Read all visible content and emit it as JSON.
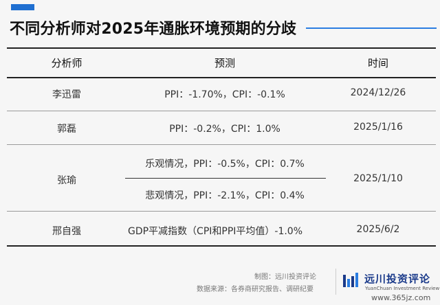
{
  "title": "不同分析师对2025年通胀环境预期的分歧",
  "colors": {
    "accent": "#1f6fd1",
    "brand": "#1a3a8a"
  },
  "table": {
    "headers": [
      "分析师",
      "预测",
      "时间"
    ],
    "rows": [
      {
        "analyst": "李迅雷",
        "forecast": "PPI：-1.70%，CPI：-0.1%",
        "time": "2024/12/26"
      },
      {
        "analyst": "郭磊",
        "forecast": "PPI：-0.2%，CPI：1.0%",
        "time": "2025/1/16"
      },
      {
        "analyst": "张瑜",
        "forecast_optimistic": "乐观情况，PPI：-0.5%，CPI：0.7%",
        "forecast_pessimistic": "悲观情况，PPI：-2.1%，CPI：0.4%",
        "time": "2025/1/10"
      },
      {
        "analyst": "邢自强",
        "forecast": "GDP平减指数（CPI和PPI平均值）-1.0%",
        "time": "2025/6/2"
      }
    ]
  },
  "footer": {
    "made_by": "制图：远川投资评论",
    "source": "数据来源：各券商研究报告、调研纪要",
    "logo_cn": "远川投资评论",
    "logo_en": "YuanChuan Investment Review",
    "watermark": "www.365jz.com",
    "logo_icon": "bar-chart-icon"
  }
}
